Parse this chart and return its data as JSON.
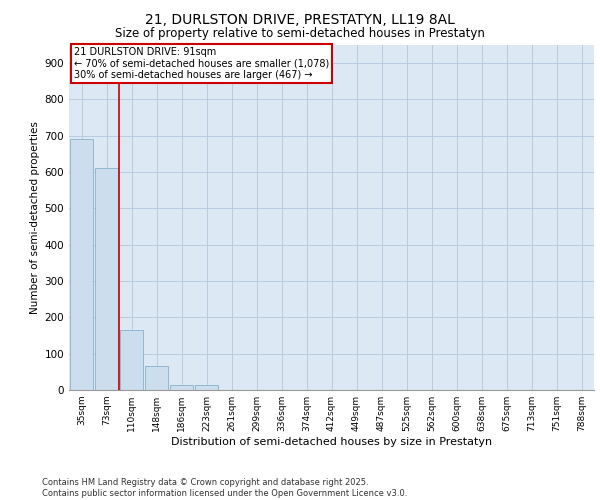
{
  "title_line1": "21, DURLSTON DRIVE, PRESTATYN, LL19 8AL",
  "title_line2": "Size of property relative to semi-detached houses in Prestatyn",
  "xlabel": "Distribution of semi-detached houses by size in Prestatyn",
  "ylabel": "Number of semi-detached properties",
  "categories": [
    "35sqm",
    "73sqm",
    "110sqm",
    "148sqm",
    "186sqm",
    "223sqm",
    "261sqm",
    "299sqm",
    "336sqm",
    "374sqm",
    "412sqm",
    "449sqm",
    "487sqm",
    "525sqm",
    "562sqm",
    "600sqm",
    "638sqm",
    "675sqm",
    "713sqm",
    "751sqm",
    "788sqm"
  ],
  "values": [
    690,
    610,
    165,
    65,
    15,
    15,
    0,
    0,
    0,
    0,
    0,
    0,
    0,
    0,
    0,
    0,
    0,
    0,
    0,
    0,
    0
  ],
  "bar_color": "#ccdded",
  "bar_edge_color": "#8ab0cc",
  "vline_color": "#cc0000",
  "vline_pos": 1.5,
  "annotation_title": "21 DURLSTON DRIVE: 91sqm",
  "annotation_line1": "← 70% of semi-detached houses are smaller (1,078)",
  "annotation_line2": "30% of semi-detached houses are larger (467) →",
  "annotation_box_color": "#cc0000",
  "ylim": [
    0,
    950
  ],
  "yticks": [
    0,
    100,
    200,
    300,
    400,
    500,
    600,
    700,
    800,
    900
  ],
  "grid_color": "#b8cce0",
  "bg_color": "#dce8f4",
  "footer_line1": "Contains HM Land Registry data © Crown copyright and database right 2025.",
  "footer_line2": "Contains public sector information licensed under the Open Government Licence v3.0."
}
